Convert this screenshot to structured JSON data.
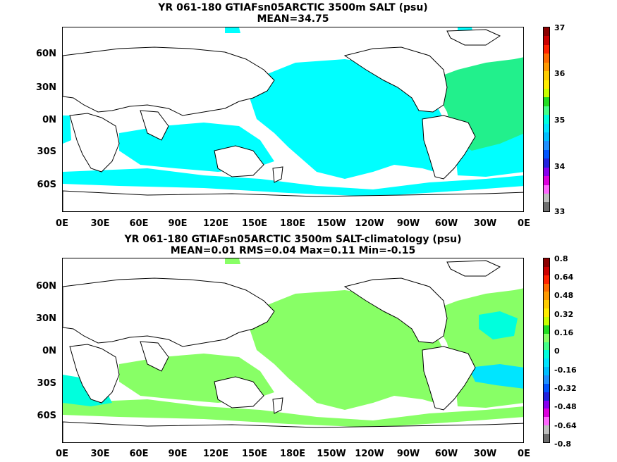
{
  "top": {
    "title_line1": "YR 061-180 GTIAFsn05ARCTIC 3500m SALT (psu)",
    "title_line2": "MEAN=34.75",
    "colorbar_labels": [
      "37",
      "36",
      "35",
      "34",
      "33"
    ],
    "colorbar_colors": [
      "#8b0000",
      "#cc0000",
      "#ff2200",
      "#ff6a00",
      "#ff9900",
      "#ffcc00",
      "#ffee00",
      "#c8ff00",
      "#22dd22",
      "#44ff88",
      "#00ffdd",
      "#00e5ff",
      "#00bfff",
      "#1e90ff",
      "#0055ff",
      "#2222dd",
      "#8800ee",
      "#dd00dd",
      "#ff66ff",
      "#c0c0c0",
      "#6e6e6e"
    ]
  },
  "bottom": {
    "title_line1": "YR 061-180 GTIAFsn05ARCTIC 3500m SALT-climatology (psu)",
    "title_line2": "MEAN=0.01   RMS=0.04   Max=0.11   Min=-0.15",
    "colorbar_labels": [
      "0.8",
      "0.64",
      "0.48",
      "0.32",
      "0.16",
      "0",
      "-0.16",
      "-0.32",
      "-0.48",
      "-0.64",
      "-0.8"
    ],
    "colorbar_colors": [
      "#8b0000",
      "#cc0000",
      "#ff2200",
      "#ff6a00",
      "#ff9900",
      "#ffcc00",
      "#ffee00",
      "#c8ff00",
      "#22dd22",
      "#88ff66",
      "#44ff88",
      "#00ffdd",
      "#00e5ff",
      "#00bfff",
      "#1e90ff",
      "#0055ff",
      "#2222dd",
      "#8800ee",
      "#dd00dd",
      "#ff66ff",
      "#c0c0c0",
      "#6e6e6e"
    ]
  },
  "lat_labels": [
    "60N",
    "30N",
    "0N",
    "30S",
    "60S"
  ],
  "lon_labels": [
    "0E",
    "30E",
    "60E",
    "90E",
    "120E",
    "150E",
    "180E",
    "150W",
    "120W",
    "90W",
    "60W",
    "30W",
    "0E"
  ],
  "colors": {
    "ocean_top": "#00ffff",
    "atlantic_top": "#22f08c",
    "ocean_bottom": "#88ff66",
    "anomaly_neg": "#00ffdd",
    "anomaly_neg2": "#00e5ff"
  }
}
